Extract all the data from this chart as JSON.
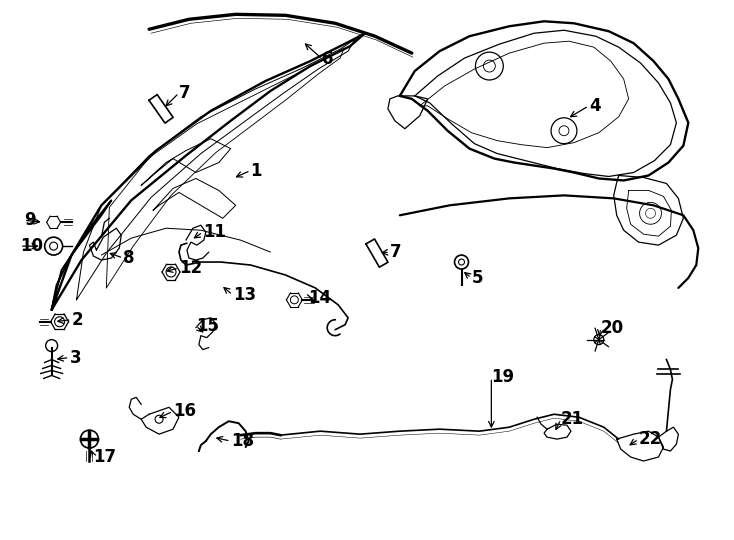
{
  "background_color": "#ffffff",
  "line_color": "#000000",
  "figsize": [
    7.34,
    5.4
  ],
  "dpi": 100,
  "labels": [
    [
      "1",
      237,
      175
    ],
    [
      "2",
      68,
      325
    ],
    [
      "3",
      65,
      360
    ],
    [
      "4",
      582,
      105
    ],
    [
      "5",
      468,
      275
    ],
    [
      "6",
      318,
      62
    ],
    [
      "7",
      175,
      95
    ],
    [
      "7",
      388,
      255
    ],
    [
      "8",
      118,
      255
    ],
    [
      "9",
      22,
      218
    ],
    [
      "10",
      18,
      240
    ],
    [
      "11",
      200,
      235
    ],
    [
      "12",
      175,
      268
    ],
    [
      "13",
      230,
      298
    ],
    [
      "14",
      302,
      298
    ],
    [
      "15",
      192,
      328
    ],
    [
      "16",
      168,
      415
    ],
    [
      "17",
      90,
      458
    ],
    [
      "18",
      228,
      440
    ],
    [
      "19",
      490,
      380
    ],
    [
      "20",
      597,
      330
    ],
    [
      "21",
      560,
      420
    ],
    [
      "22",
      637,
      440
    ]
  ]
}
